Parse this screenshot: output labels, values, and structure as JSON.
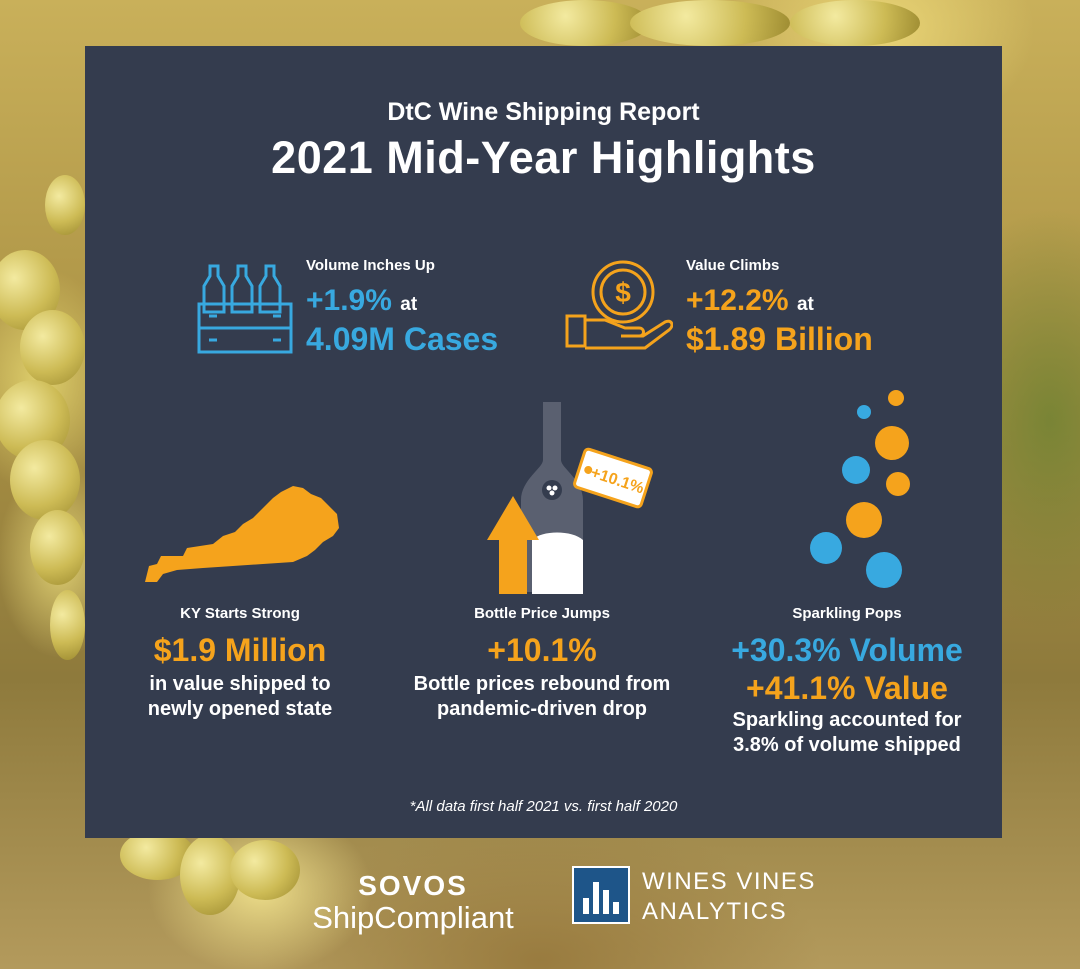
{
  "header": {
    "subtitle": "DtC Wine Shipping Report",
    "title": "2021 Mid-Year Highlights"
  },
  "volume": {
    "label": "Volume Inches Up",
    "change": "+1.9%",
    "connector": "at",
    "amount": "4.09M Cases",
    "icon": "wine-case-icon"
  },
  "value": {
    "label": "Value Climbs",
    "change": "+12.2%",
    "connector": "at",
    "amount": "$1.89 Billion",
    "icon": "money-hand-icon"
  },
  "kentucky": {
    "label": "KY Starts Strong",
    "amount": "$1.9 Million",
    "desc_line1": "in value shipped to",
    "desc_line2": "newly opened state",
    "icon": "kentucky-map-icon"
  },
  "bottle": {
    "label": "Bottle Price Jumps",
    "amount": "+10.1%",
    "tag": "+10.1%",
    "desc_line1": "Bottle prices rebound from",
    "desc_line2": "pandemic-driven drop",
    "icon": "wine-bottle-price-icon"
  },
  "sparkling": {
    "label": "Sparkling Pops",
    "volume": "+30.3% Volume",
    "value": "+41.1% Value",
    "desc_line1": "Sparkling accounted for",
    "desc_line2": "3.8% of volume shipped",
    "icon": "bubbles-icon"
  },
  "footnote": "*All data first half 2021 vs. first half 2020",
  "logos": {
    "sovos": "SOVOS",
    "shipcompliant": "ShipCompliant",
    "wines_vines_line1": "WINES VINES",
    "wines_vines_line2": "ANALYTICS"
  },
  "colors": {
    "panel": "#343c4e",
    "blue": "#38a9e0",
    "orange": "#f5a31c"
  }
}
